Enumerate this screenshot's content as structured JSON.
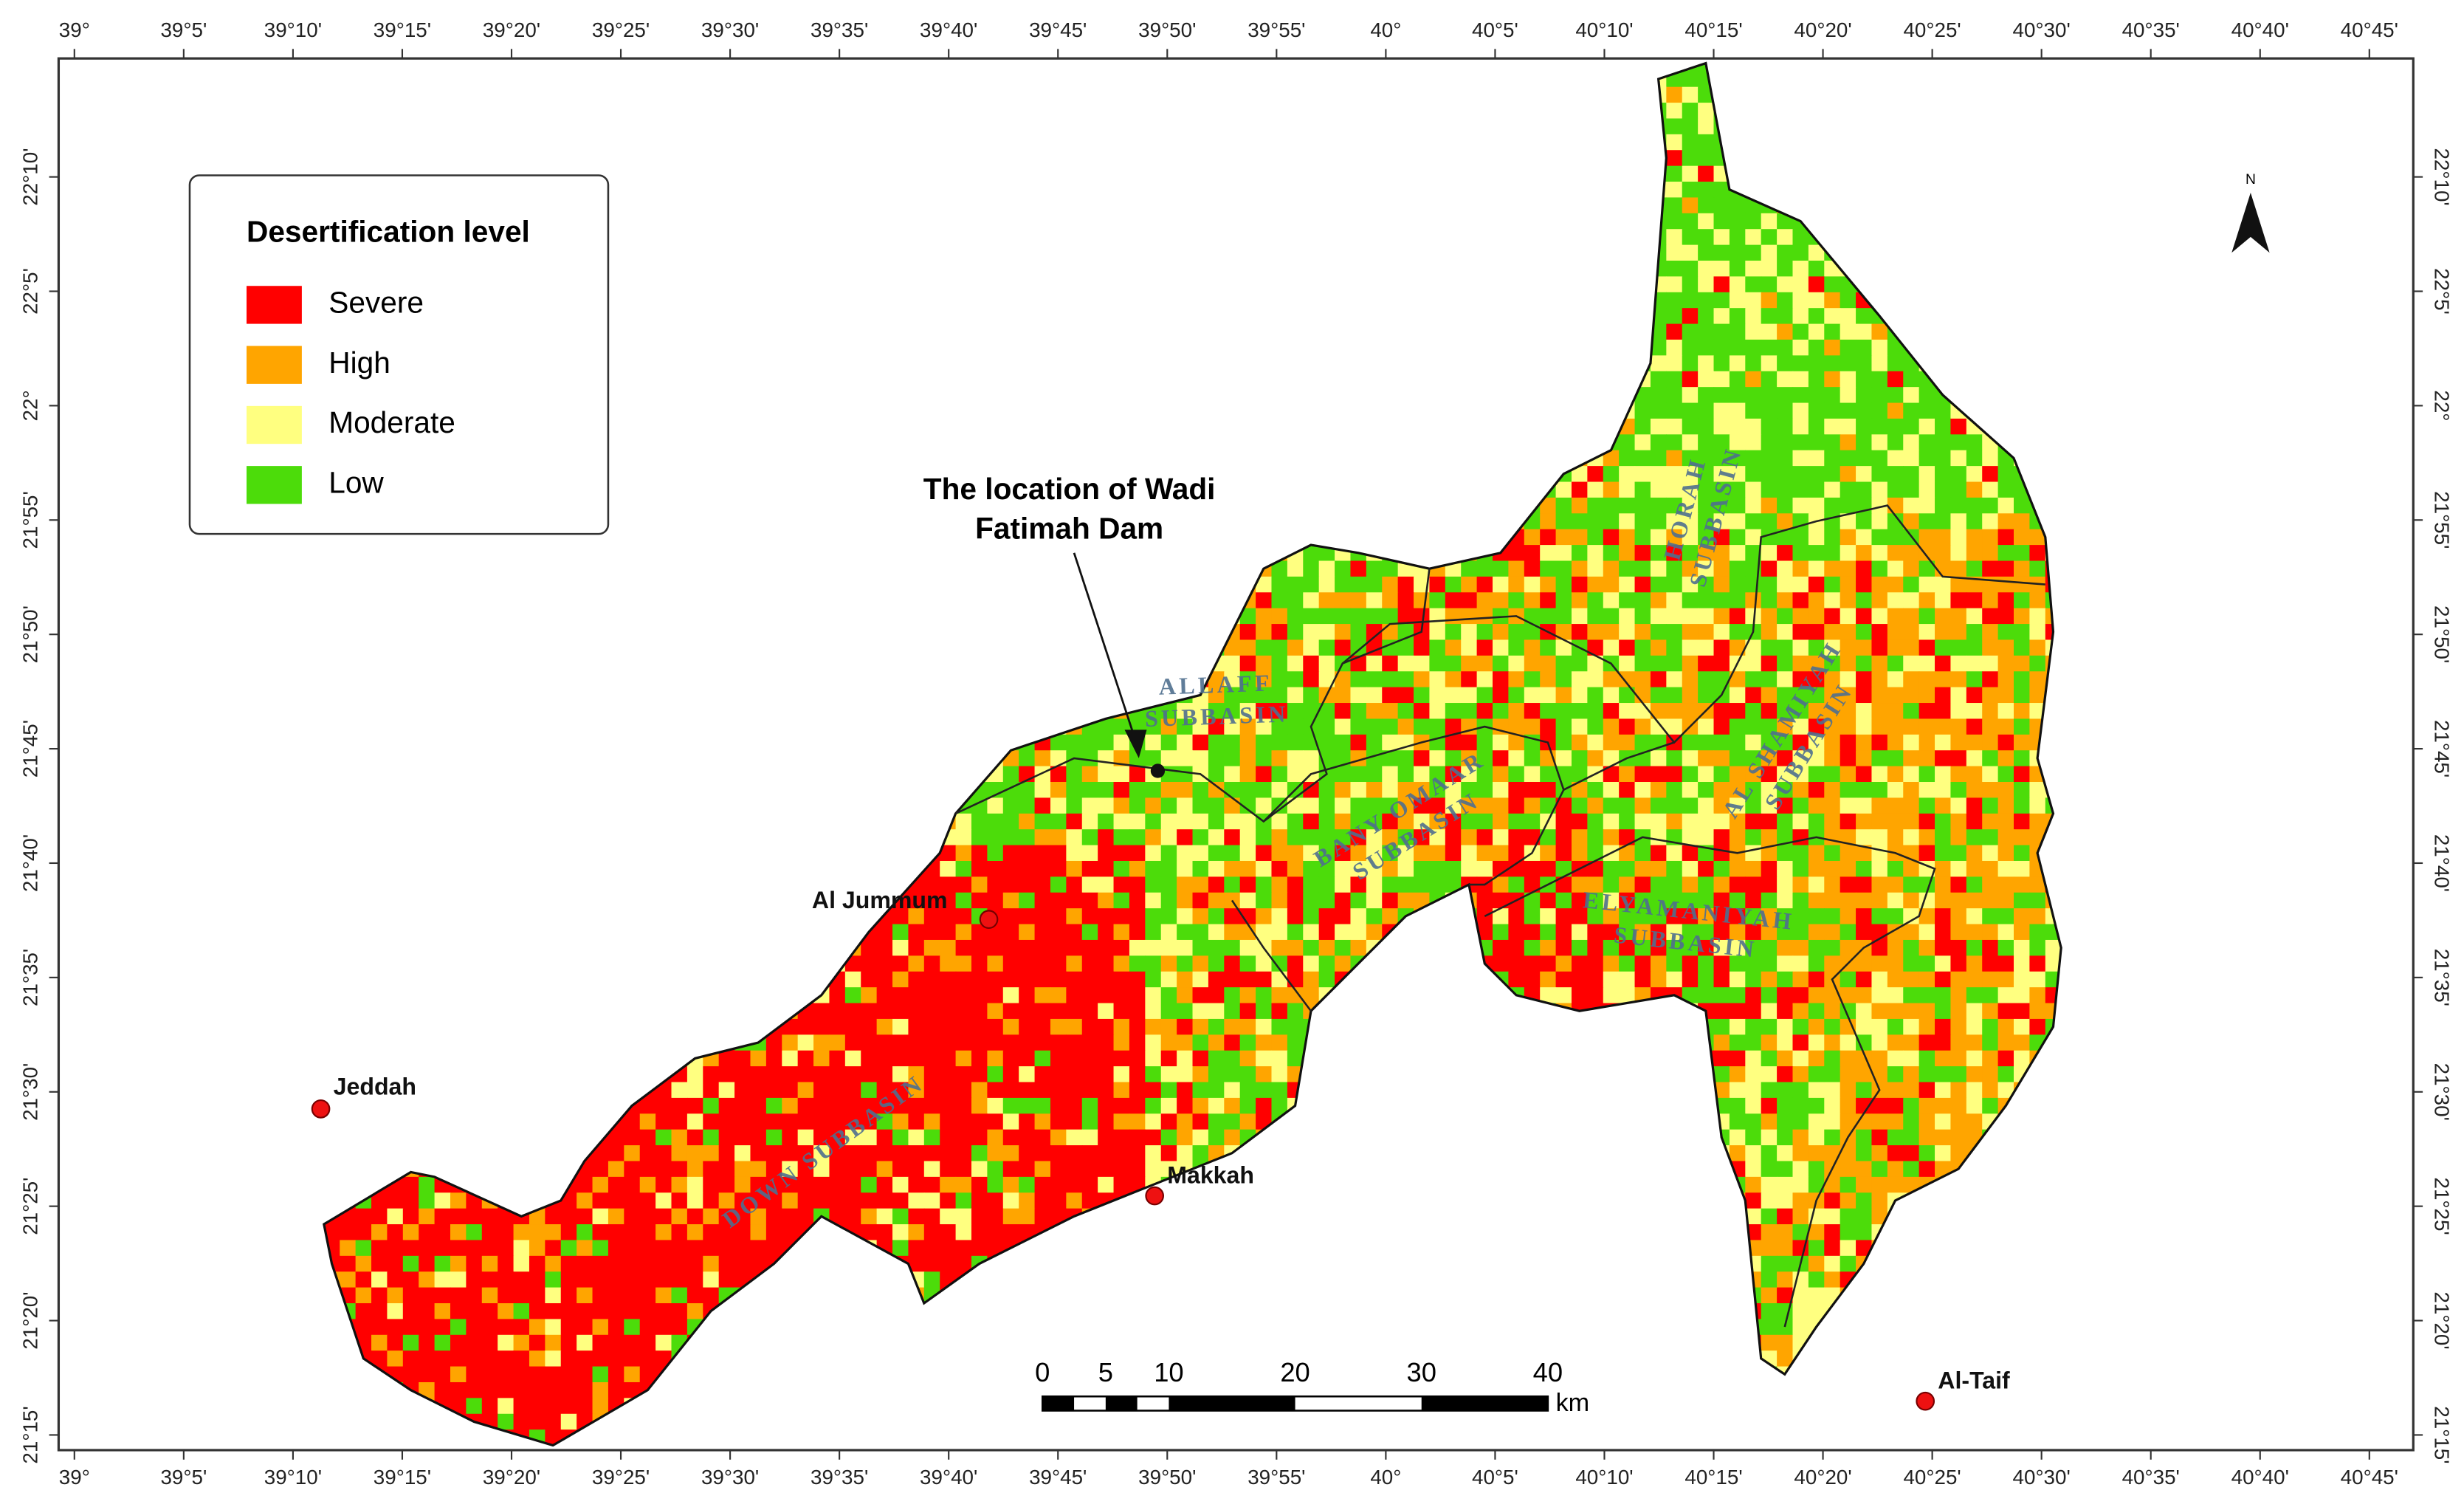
{
  "legend": {
    "title": "Desertification level",
    "items": [
      {
        "label": "Severe",
        "color": "#ff0000"
      },
      {
        "label": "High",
        "color": "#ffa500"
      },
      {
        "label": "Moderate",
        "color": "#ffff80"
      },
      {
        "label": "Low",
        "color": "#4cdc0a"
      }
    ]
  },
  "annotation": [
    "The location of Wadi",
    "Fatimah Dam"
  ],
  "cities": [
    "Jeddah",
    "Al Jummum",
    "Makkah",
    "Al-Taif"
  ],
  "subbasins": [
    [
      "ALLAFF",
      "SUBBASIN"
    ],
    [
      "HORAH",
      "SUBBASIN"
    ],
    [
      "AL SHAMIYAH",
      "SUBBASIN"
    ],
    [
      "BANY OMAAR",
      "SUBBASIN"
    ],
    [
      "ELYAMANIYAH",
      "SUBBASIN"
    ],
    [
      "DOWN SUBBASIN"
    ]
  ],
  "longitude_labels": [
    "39°",
    "39°5'",
    "39°10'",
    "39°15'",
    "39°20'",
    "39°25'",
    "39°30'",
    "39°35'",
    "39°40'",
    "39°45'",
    "39°50'",
    "39°55'",
    "40°",
    "40°5'",
    "40°10'",
    "40°15'",
    "40°20'",
    "40°25'",
    "40°30'",
    "40°35'",
    "40°40'",
    "40°45'"
  ],
  "latitude_labels": [
    "22°10'",
    "22°5'",
    "22°",
    "21°55'",
    "21°50'",
    "21°45'",
    "21°40'",
    "21°35'",
    "21°30'",
    "21°25'",
    "21°20'",
    "21°15'"
  ],
  "north": "N",
  "scale_bar": {
    "labels": [
      0,
      5,
      10,
      20,
      30,
      40
    ],
    "unit": "km"
  }
}
